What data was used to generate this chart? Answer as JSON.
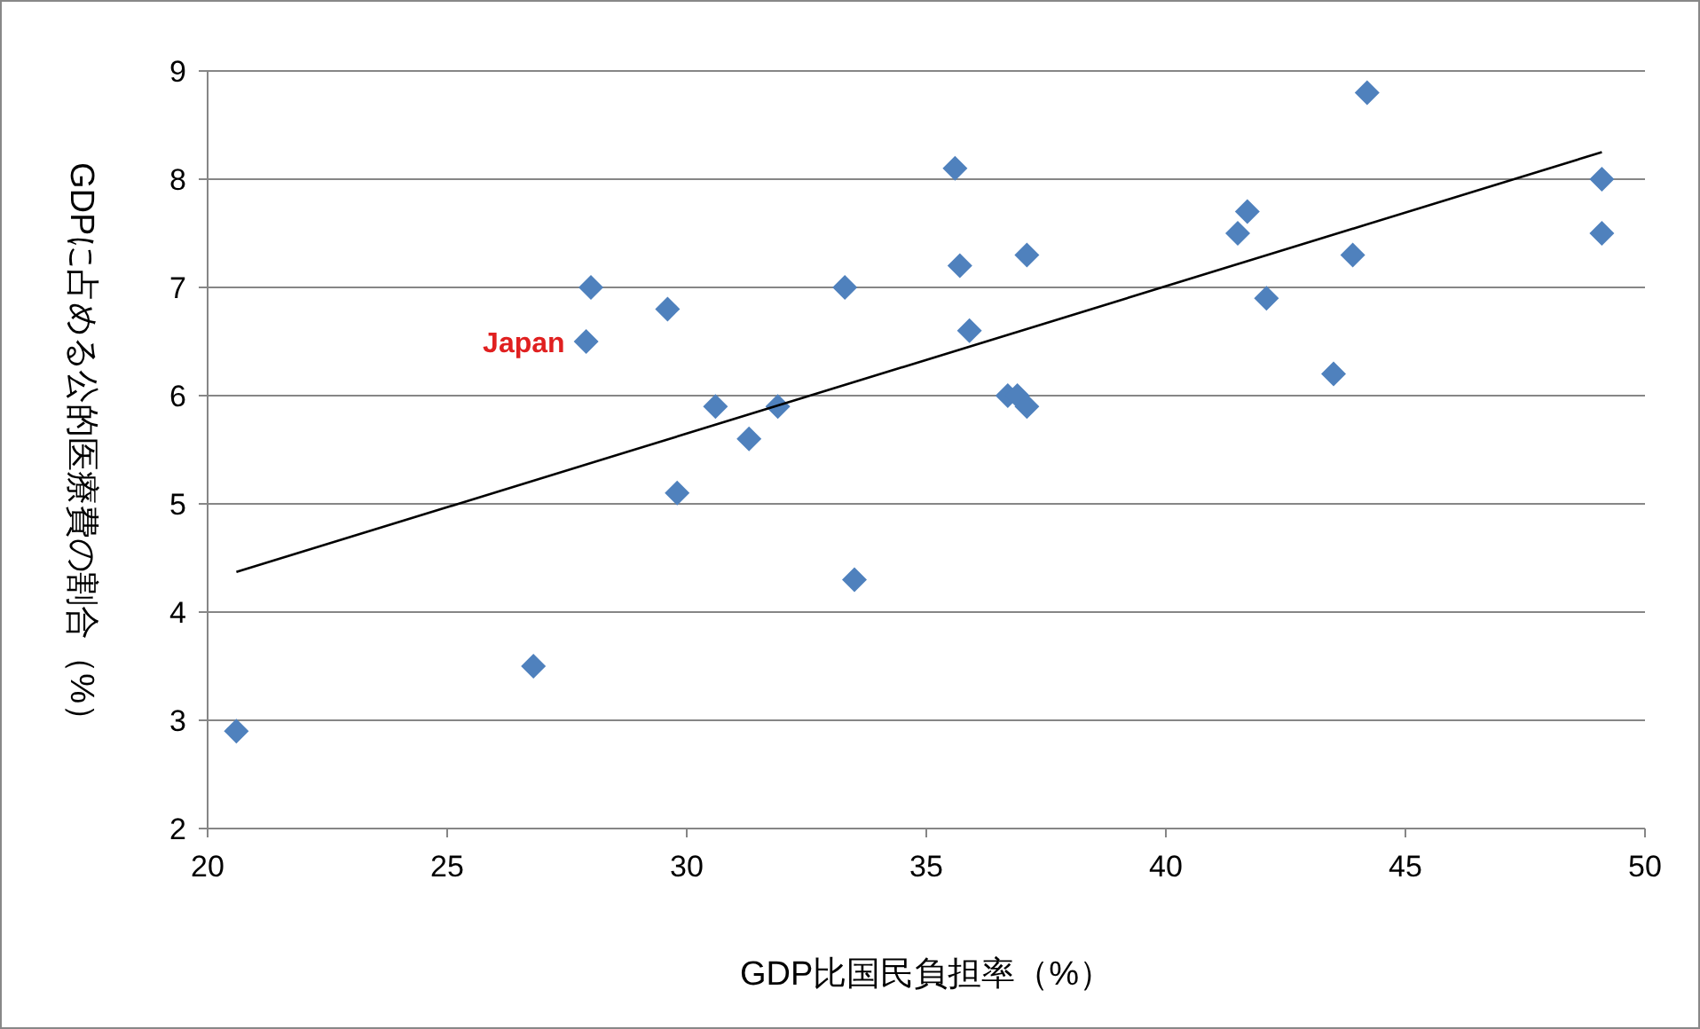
{
  "chart_data": {
    "type": "scatter",
    "xlabel": "GDP比国民負担率（%）",
    "ylabel": "GDPに占める公的医療費の割合（%）",
    "xlim": [
      20,
      50
    ],
    "xticks": [
      20,
      25,
      30,
      35,
      40,
      45,
      50
    ],
    "ylim": [
      2,
      9
    ],
    "yticks": [
      2,
      3,
      4,
      5,
      6,
      7,
      8,
      9
    ],
    "grid": "y",
    "marker": "diamond",
    "annotations": [
      {
        "text": "Japan",
        "x": 27.9,
        "y": 6.5
      }
    ],
    "series": [
      {
        "color": "#4f81bd",
        "x": [
          20.6,
          26.8,
          28.0,
          27.9,
          29.6,
          29.8,
          30.6,
          31.3,
          31.9,
          33.3,
          33.5,
          35.6,
          35.7,
          35.9,
          36.7,
          36.9,
          37.1,
          37.1,
          41.5,
          41.7,
          42.1,
          43.5,
          43.9,
          44.2,
          49.1,
          49.1
        ],
        "values": [
          2.9,
          3.5,
          7.0,
          6.5,
          6.8,
          5.1,
          5.9,
          5.6,
          5.9,
          7.0,
          4.3,
          8.1,
          7.2,
          6.6,
          6.0,
          6.0,
          5.9,
          7.3,
          7.5,
          7.7,
          6.9,
          6.2,
          7.3,
          8.8,
          8.0,
          7.5
        ]
      },
      {
        "type": "line",
        "color": "#000000",
        "marker": "none",
        "x": [
          20.6,
          49.1
        ],
        "values": [
          4.37,
          8.25
        ]
      }
    ]
  }
}
